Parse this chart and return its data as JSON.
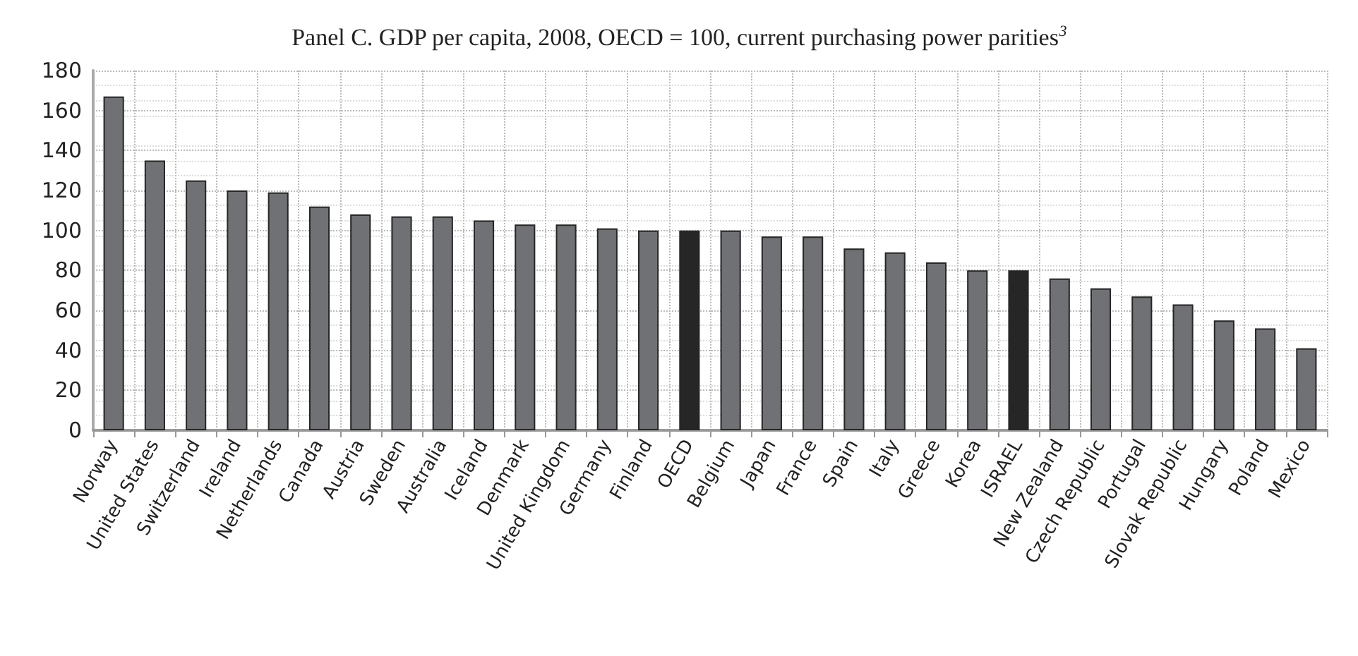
{
  "chart_data": {
    "type": "bar",
    "title": "Panel C. GDP per capita, 2008, OECD = 100, current purchasing power parities$^{3}$",
    "categories": [
      "Norway",
      "United States",
      "Switzerland",
      "Ireland",
      "Netherlands",
      "Canada",
      "Austria",
      "Sweden",
      "Australia",
      "Iceland",
      "Denmark",
      "United Kingdom",
      "Germany",
      "Finland",
      "OECD",
      "Belgium",
      "Japan",
      "France",
      "Spain",
      "Italy",
      "Greece",
      "Korea",
      "ISRAEL",
      "New Zealand",
      "Czech Republic",
      "Portugal",
      "Slovak Republic",
      "Hungary",
      "Poland",
      "Mexico"
    ],
    "values": [
      167,
      135,
      125,
      120,
      119,
      112,
      108,
      107,
      107,
      105,
      103,
      103,
      101,
      100,
      100,
      100,
      97,
      97,
      91,
      89,
      84,
      80,
      80,
      76,
      71,
      67,
      63,
      55,
      51,
      41
    ],
    "colors": [
      "#707174",
      "#707174",
      "#707174",
      "#707174",
      "#707174",
      "#707174",
      "#707174",
      "#707174",
      "#707174",
      "#707174",
      "#707174",
      "#707174",
      "#707174",
      "#707174",
      "#262626",
      "#707174",
      "#707174",
      "#707174",
      "#707174",
      "#707174",
      "#707174",
      "#707174",
      "#262626",
      "#707174",
      "#707174",
      "#707174",
      "#707174",
      "#707174",
      "#707174",
      "#707174"
    ],
    "ylim": [
      0,
      180
    ],
    "yticks": [
      0,
      20,
      40,
      60,
      80,
      100,
      120,
      140,
      160,
      180
    ],
    "grid": true
  }
}
